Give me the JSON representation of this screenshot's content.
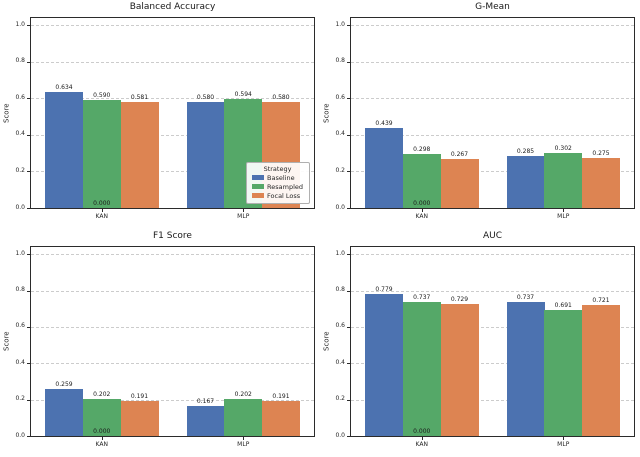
{
  "figure": {
    "background": "#ffffff",
    "grid_style": "dashed-horizontal",
    "layout": "2x2-subplots"
  },
  "legend": {
    "title": "Strategy",
    "position": "lower-right-of-first-chart",
    "entries": [
      {
        "label": "Baseline",
        "color": "#4C72B0"
      },
      {
        "label": "Resampled",
        "color": "#55A868"
      },
      {
        "label": "Focal Loss",
        "color": "#DD8452"
      }
    ]
  },
  "chart_data": [
    {
      "type": "bar",
      "title": "Balanced Accuracy",
      "xlabel": "",
      "ylabel": "Score",
      "ylim": [
        0,
        1.04
      ],
      "yticks": [
        0.0,
        0.2,
        0.4,
        0.6,
        0.8,
        1.0
      ],
      "categories": [
        "KAN",
        "MLP"
      ],
      "series": [
        {
          "name": "Baseline",
          "color": "#4C72B0",
          "values": [
            0.634,
            0.58
          ]
        },
        {
          "name": "Resampled",
          "color": "#55A868",
          "values": [
            0.59,
            0.594
          ]
        },
        {
          "name": "Focal Loss",
          "color": "#DD8452",
          "values": [
            0.581,
            0.58
          ]
        }
      ],
      "zero_annotation": {
        "category": "KAN",
        "category_index": 0,
        "text": "0.000"
      },
      "show_legend": true
    },
    {
      "type": "bar",
      "title": "G-Mean",
      "xlabel": "",
      "ylabel": "Score",
      "ylim": [
        0,
        1.04
      ],
      "yticks": [
        0.0,
        0.2,
        0.4,
        0.6,
        0.8,
        1.0
      ],
      "categories": [
        "KAN",
        "MLP"
      ],
      "series": [
        {
          "name": "Baseline",
          "color": "#4C72B0",
          "values": [
            0.439,
            0.285
          ]
        },
        {
          "name": "Resampled",
          "color": "#55A868",
          "values": [
            0.298,
            0.302
          ]
        },
        {
          "name": "Focal Loss",
          "color": "#DD8452",
          "values": [
            0.267,
            0.275
          ]
        }
      ],
      "zero_annotation": {
        "category": "KAN",
        "category_index": 0,
        "text": "0.000"
      },
      "show_legend": false
    },
    {
      "type": "bar",
      "title": "F1 Score",
      "xlabel": "",
      "ylabel": "Score",
      "ylim": [
        0,
        1.04
      ],
      "yticks": [
        0.0,
        0.2,
        0.4,
        0.6,
        0.8,
        1.0
      ],
      "categories": [
        "KAN",
        "MLP"
      ],
      "series": [
        {
          "name": "Baseline",
          "color": "#4C72B0",
          "values": [
            0.259,
            0.167
          ]
        },
        {
          "name": "Resampled",
          "color": "#55A868",
          "values": [
            0.202,
            0.202
          ]
        },
        {
          "name": "Focal Loss",
          "color": "#DD8452",
          "values": [
            0.191,
            0.191
          ]
        }
      ],
      "zero_annotation": {
        "category": "KAN",
        "category_index": 0,
        "text": "0.000"
      },
      "show_legend": false
    },
    {
      "type": "bar",
      "title": "AUC",
      "xlabel": "",
      "ylabel": "Score",
      "ylim": [
        0,
        1.04
      ],
      "yticks": [
        0.0,
        0.2,
        0.4,
        0.6,
        0.8,
        1.0
      ],
      "categories": [
        "KAN",
        "MLP"
      ],
      "series": [
        {
          "name": "Baseline",
          "color": "#4C72B0",
          "values": [
            0.779,
            0.737
          ]
        },
        {
          "name": "Resampled",
          "color": "#55A868",
          "values": [
            0.737,
            0.691
          ]
        },
        {
          "name": "Focal Loss",
          "color": "#DD8452",
          "values": [
            0.729,
            0.721
          ]
        }
      ],
      "zero_annotation": {
        "category": "KAN",
        "category_index": 0,
        "text": "0.000"
      },
      "show_legend": false
    }
  ]
}
